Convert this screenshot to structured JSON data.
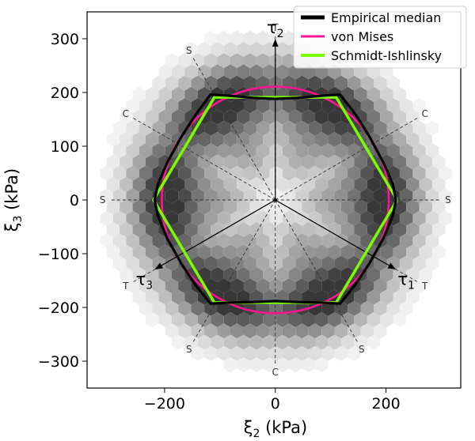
{
  "chart_data": {
    "type": "line",
    "xlabel_main": "ξ",
    "xlabel_sub": "2",
    "xlabel_unit": " (kPa)",
    "ylabel_main": "ξ",
    "ylabel_sub": "3",
    "ylabel_unit": " (kPa)",
    "xlim": [
      -340,
      335
    ],
    "ylim": [
      -350,
      350
    ],
    "xticks": [
      -200,
      0,
      200
    ],
    "yticks": [
      -300,
      -200,
      -100,
      0,
      100,
      200,
      300
    ],
    "x_tick_labels": [
      "−200",
      "0",
      "200"
    ],
    "y_tick_labels": [
      "−300",
      "−200",
      "−100",
      "0",
      "100",
      "200",
      "300"
    ],
    "legend_position": "top-right",
    "legend": [
      {
        "label": "Empirical median",
        "color": "#000000"
      },
      {
        "label": "von Mises",
        "color": "#ff1493"
      },
      {
        "label": "Schmidt-Ishlinsky",
        "color": "#7cfc00"
      }
    ],
    "series": [
      {
        "name": "Empirical median",
        "color": "#000000",
        "x": [
          218,
          212,
          195,
          170,
          143,
          117,
          85,
          40,
          0,
          -40,
          -85,
          -117,
          -143,
          -170,
          -195,
          -212,
          -218,
          -212,
          -195,
          -170,
          -143,
          -117,
          -85,
          -40,
          0,
          40,
          85,
          117,
          143,
          170,
          195,
          212,
          218
        ],
        "y": [
          0,
          30,
          70,
          118,
          162,
          196,
          194,
          190,
          188,
          190,
          194,
          196,
          160,
          117,
          70,
          30,
          0,
          -30,
          -72,
          -118,
          -160,
          -193,
          -191,
          -190,
          -188,
          -190,
          -191,
          -193,
          -160,
          -118,
          -72,
          -30,
          0
        ]
      },
      {
        "name": "von Mises",
        "color": "#ff1493",
        "circle_radius": 205
      },
      {
        "name": "Schmidt-Ishlinsky",
        "color": "#7cfc00",
        "x": [
          220,
          110,
          -110,
          -220,
          -110,
          110,
          220
        ],
        "y": [
          0,
          191,
          191,
          0,
          -191,
          -191,
          0
        ]
      }
    ],
    "directions": [
      {
        "label": "T",
        "angle": 90
      },
      {
        "label": "C",
        "angle": 30
      },
      {
        "label": "S",
        "angle": 0
      },
      {
        "label": "T",
        "angle": -30
      },
      {
        "label": "S",
        "angle": -60
      },
      {
        "label": "C",
        "angle": -90
      },
      {
        "label": "S",
        "angle": -120
      },
      {
        "label": "T",
        "angle": -150
      },
      {
        "label": "S",
        "angle": 180
      },
      {
        "label": "C",
        "angle": 150
      },
      {
        "label": "S",
        "angle": 120
      }
    ],
    "tau_axes": [
      {
        "symbol": "τ",
        "sub": "2",
        "angle": 90,
        "length": 290
      },
      {
        "symbol": "τ",
        "sub": "1",
        "angle": -30,
        "length": 250
      },
      {
        "symbol": "τ",
        "sub": "3",
        "angle": -150,
        "length": 250
      }
    ]
  }
}
